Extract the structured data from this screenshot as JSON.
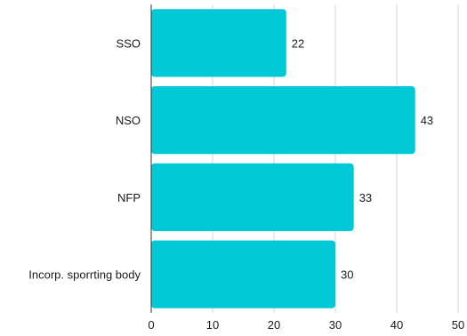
{
  "chart_data": {
    "type": "bar",
    "orientation": "horizontal",
    "categories": [
      "SSO",
      "NSO",
      "NFP",
      "Incorp. sporrting body"
    ],
    "values": [
      22,
      43,
      33,
      30
    ],
    "title": "",
    "xlabel": "",
    "ylabel": "",
    "xlim": [
      0,
      50
    ],
    "x_ticks": [
      0,
      10,
      20,
      30,
      40,
      50
    ],
    "grid": true,
    "legend": "none",
    "bar_color": "#00C8D7",
    "data_labels": true
  }
}
